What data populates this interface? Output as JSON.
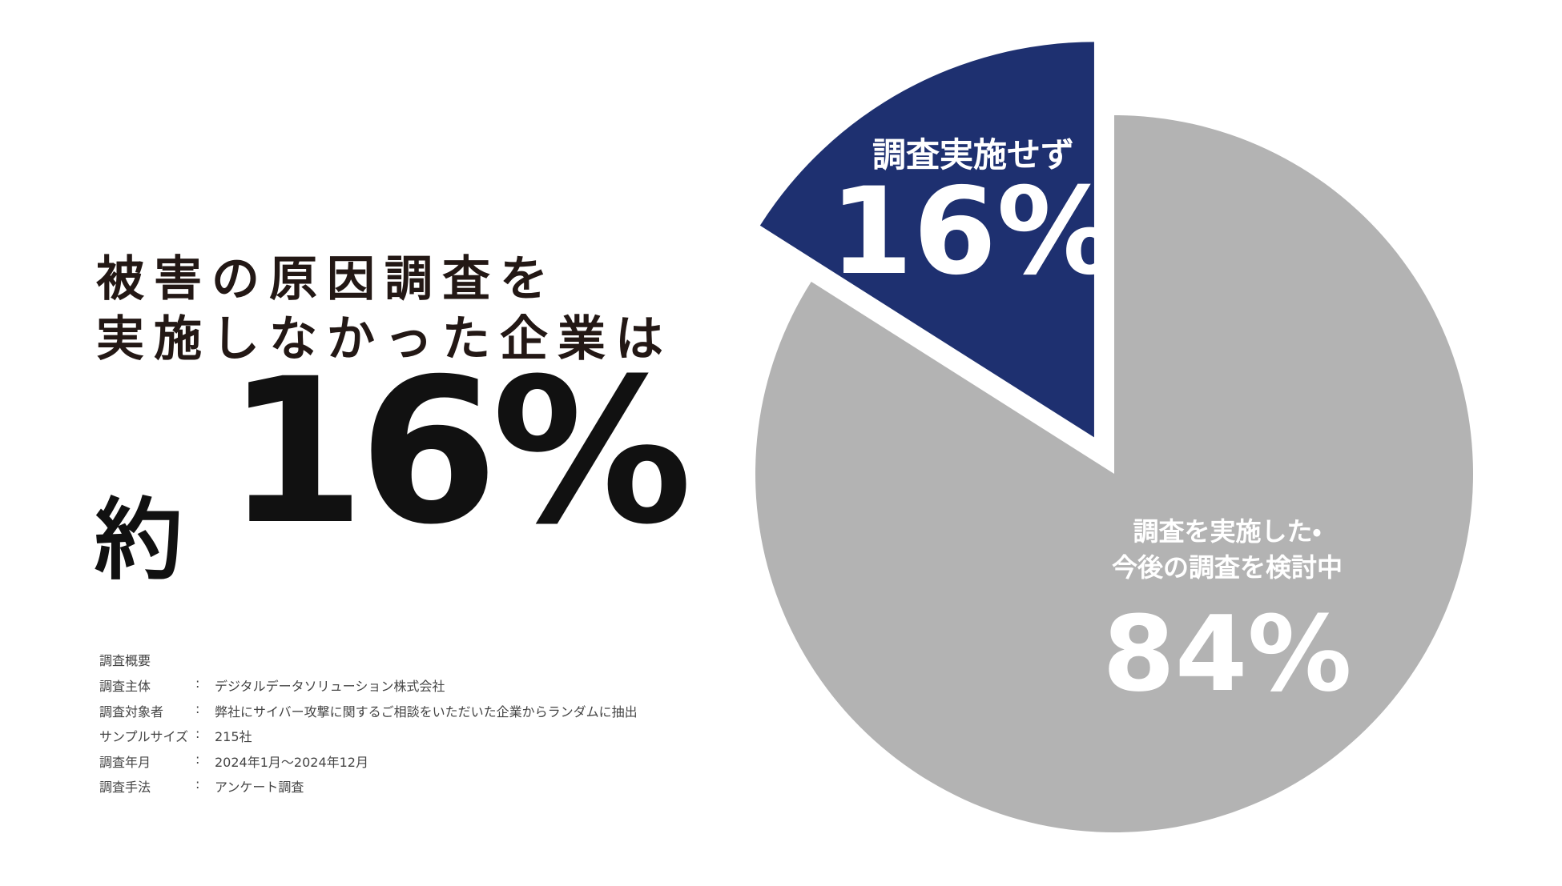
{
  "headline": {
    "lines": [
      "被害の原因調査を",
      "実施しなかった企業は"
    ],
    "prefix": "約",
    "figure": "16%"
  },
  "chart_data": {
    "type": "pie",
    "categories": [
      "調査実施せず",
      "調査を実施した・\n今後の調査を検討中"
    ],
    "values": [
      16,
      84
    ],
    "value_labels": [
      "16%",
      "84%"
    ],
    "colors": [
      "#1e3070",
      "#b3b3b3"
    ],
    "exploded": [
      true,
      false
    ]
  },
  "survey": {
    "title": "調査概要",
    "rows": [
      [
        "調査主体",
        ":",
        "デジタルデータソリューション株式会社"
      ],
      [
        "調査対象者",
        ":",
        "弊社にサイバー攻撃に関するご相談をいただいた企業からランダムに抽出"
      ],
      [
        "サンプルサイズ",
        ":",
        "215社"
      ],
      [
        "調査年月",
        ":",
        "2024年1月～2024年12月"
      ],
      [
        "調査手法",
        ":",
        "アンケート調査"
      ]
    ]
  }
}
